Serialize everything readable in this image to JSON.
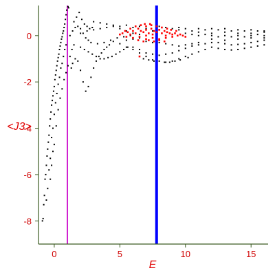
{
  "chart_data": {
    "type": "scatter",
    "title": "",
    "xlabel": "E",
    "ylabel": "<J3>",
    "xlim": [
      -1.2,
      16.3
    ],
    "ylim": [
      -9.0,
      1.3
    ],
    "x_ticks": [
      0,
      5,
      10,
      15
    ],
    "y_ticks": [
      0,
      -2,
      -4,
      -6,
      -8
    ],
    "x_tick_labels": [
      "0",
      "5",
      "10",
      "15"
    ],
    "y_tick_labels": [
      "0",
      "-2",
      "-4",
      "-6",
      "-8"
    ],
    "grid": false,
    "legend": "none",
    "vertical_lines": [
      {
        "x": 1.0,
        "color": "#d020d0"
      },
      {
        "x": 7.8,
        "color": "#0000ff"
      }
    ],
    "series": [
      {
        "color": "#000000",
        "points": [
          [
            -0.9,
            -8.0
          ],
          [
            -0.85,
            -7.9
          ],
          [
            -0.8,
            -7.3
          ],
          [
            -0.75,
            -6.9
          ],
          [
            -0.7,
            -6.2
          ],
          [
            -0.65,
            -6.0
          ],
          [
            -0.6,
            -5.6
          ],
          [
            -0.55,
            -5.2
          ],
          [
            -0.5,
            -4.9
          ],
          [
            -0.45,
            -4.6
          ],
          [
            -0.4,
            -4.3
          ],
          [
            -0.35,
            -3.9
          ],
          [
            -0.3,
            -3.6
          ],
          [
            -0.25,
            -3.3
          ],
          [
            -0.2,
            -3.0
          ],
          [
            -0.15,
            -2.8
          ],
          [
            -0.1,
            -2.6
          ],
          [
            -0.05,
            -2.4
          ],
          [
            0.0,
            -2.2
          ],
          [
            0.05,
            -1.9
          ],
          [
            0.1,
            -1.7
          ],
          [
            0.15,
            -1.5
          ],
          [
            0.2,
            -1.3
          ],
          [
            0.25,
            -1.1
          ],
          [
            0.3,
            -0.95
          ],
          [
            0.35,
            -0.8
          ],
          [
            0.4,
            -0.6
          ],
          [
            0.45,
            -0.45
          ],
          [
            0.5,
            -0.3
          ],
          [
            0.55,
            -0.15
          ],
          [
            0.6,
            -0.05
          ],
          [
            0.65,
            0.1
          ],
          [
            0.7,
            0.2
          ],
          [
            0.75,
            0.35
          ],
          [
            0.8,
            0.5
          ],
          [
            0.85,
            0.7
          ],
          [
            0.9,
            0.9
          ],
          [
            0.95,
            1.1
          ],
          [
            1.05,
            1.25
          ],
          [
            1.1,
            1.2
          ],
          [
            -0.6,
            -7.1
          ],
          [
            -0.5,
            -6.6
          ],
          [
            -0.4,
            -5.8
          ],
          [
            -0.3,
            -5.3
          ],
          [
            -0.2,
            -4.4
          ],
          [
            -0.1,
            -4.0
          ],
          [
            0.0,
            -3.4
          ],
          [
            0.1,
            -2.9
          ],
          [
            0.2,
            -2.5
          ],
          [
            0.3,
            -2.1
          ],
          [
            0.4,
            -1.8
          ],
          [
            0.5,
            -1.4
          ],
          [
            0.6,
            -1.2
          ],
          [
            0.7,
            -0.9
          ],
          [
            0.8,
            -0.6
          ],
          [
            0.9,
            -0.4
          ],
          [
            -0.3,
            -6.2
          ],
          [
            -0.2,
            -5.6
          ],
          [
            -0.1,
            -5.0
          ],
          [
            0.0,
            -4.7
          ],
          [
            0.15,
            -3.9
          ],
          [
            0.3,
            -3.2
          ],
          [
            0.45,
            -2.7
          ],
          [
            0.6,
            -2.3
          ],
          [
            0.75,
            -1.9
          ],
          [
            0.9,
            -1.6
          ],
          [
            1.05,
            -1.3
          ],
          [
            1.2,
            -0.9
          ],
          [
            1.35,
            -0.6
          ],
          [
            1.5,
            -0.4
          ],
          [
            1.3,
            -1.4
          ],
          [
            1.4,
            -1.2
          ],
          [
            1.6,
            -1.0
          ],
          [
            1.8,
            -1.1
          ],
          [
            2.0,
            -1.5
          ],
          [
            2.2,
            -2.0
          ],
          [
            2.4,
            -2.4
          ],
          [
            2.6,
            -2.2
          ],
          [
            2.8,
            -1.8
          ],
          [
            3.0,
            -1.4
          ],
          [
            3.2,
            -1.1
          ],
          [
            3.4,
            -0.9
          ],
          [
            3.6,
            -0.75
          ],
          [
            3.8,
            -0.6
          ],
          [
            4.0,
            -0.5
          ],
          [
            4.2,
            -0.4
          ],
          [
            1.5,
            0.6
          ],
          [
            1.7,
            0.8
          ],
          [
            1.9,
            1.0
          ],
          [
            2.1,
            0.7
          ],
          [
            2.3,
            0.5
          ],
          [
            2.5,
            0.4
          ],
          [
            2.7,
            0.3
          ],
          [
            2.9,
            0.35
          ],
          [
            1.2,
            0.0
          ],
          [
            1.4,
            0.2
          ],
          [
            1.6,
            0.35
          ],
          [
            1.8,
            0.4
          ],
          [
            2.0,
            0.3
          ],
          [
            2.2,
            0.1
          ],
          [
            2.4,
            -0.1
          ],
          [
            2.6,
            -0.2
          ],
          [
            2.0,
            -0.5
          ],
          [
            2.3,
            -0.6
          ],
          [
            2.6,
            -0.7
          ],
          [
            2.9,
            -0.8
          ],
          [
            3.2,
            -0.9
          ],
          [
            3.5,
            -1.0
          ],
          [
            3.8,
            -1.0
          ],
          [
            4.1,
            -0.95
          ],
          [
            4.4,
            -0.9
          ],
          [
            4.7,
            -0.8
          ],
          [
            5.0,
            -0.7
          ],
          [
            5.3,
            -0.6
          ],
          [
            5.6,
            -0.5
          ],
          [
            2.0,
            0.1
          ],
          [
            2.5,
            0.2
          ],
          [
            3.0,
            0.25
          ],
          [
            3.5,
            0.3
          ],
          [
            4.0,
            0.35
          ],
          [
            4.5,
            0.4
          ],
          [
            5.0,
            0.4
          ],
          [
            5.5,
            0.45
          ],
          [
            3.0,
            0.6
          ],
          [
            3.5,
            0.55
          ],
          [
            4.0,
            0.5
          ],
          [
            4.5,
            0.45
          ],
          [
            5.0,
            0.3
          ],
          [
            5.5,
            0.2
          ],
          [
            6.0,
            0.1
          ],
          [
            6.5,
            0.05
          ],
          [
            2.8,
            -0.3
          ],
          [
            3.3,
            -0.35
          ],
          [
            3.8,
            -0.3
          ],
          [
            4.3,
            -0.2
          ],
          [
            4.8,
            -0.1
          ],
          [
            5.3,
            -0.05
          ],
          [
            5.8,
            0.0
          ],
          [
            4.5,
            -0.25
          ],
          [
            5.0,
            -0.35
          ],
          [
            5.5,
            -0.5
          ],
          [
            6.0,
            -0.6
          ],
          [
            6.5,
            -0.75
          ],
          [
            7.0,
            -0.9
          ],
          [
            7.5,
            -1.05
          ],
          [
            8.0,
            -1.1
          ],
          [
            8.5,
            -1.15
          ],
          [
            9.0,
            -1.1
          ],
          [
            9.5,
            -1.0
          ],
          [
            10.0,
            -0.9
          ],
          [
            10.5,
            -0.8
          ],
          [
            11.0,
            -0.7
          ],
          [
            11.5,
            -0.6
          ],
          [
            6.0,
            -0.5
          ],
          [
            6.5,
            -0.6
          ],
          [
            7.0,
            -0.75
          ],
          [
            7.5,
            -0.8
          ],
          [
            8.0,
            -0.85
          ],
          [
            8.5,
            -0.8
          ],
          [
            9.0,
            -0.75
          ],
          [
            9.5,
            -0.65
          ],
          [
            10.0,
            -0.55
          ],
          [
            10.5,
            -0.45
          ],
          [
            11.0,
            -0.4
          ],
          [
            11.5,
            -0.35
          ],
          [
            12.0,
            -0.3
          ],
          [
            6.8,
            -1.0
          ],
          [
            7.2,
            -1.05
          ],
          [
            7.6,
            -1.1
          ],
          [
            8.4,
            -1.15
          ],
          [
            8.8,
            -1.15
          ],
          [
            9.2,
            -1.1
          ],
          [
            9.6,
            -1.05
          ],
          [
            10.2,
            -0.95
          ],
          [
            12.0,
            -0.5
          ],
          [
            12.5,
            -0.55
          ],
          [
            13.0,
            -0.6
          ],
          [
            13.5,
            -0.62
          ],
          [
            14.0,
            -0.6
          ],
          [
            14.5,
            -0.55
          ],
          [
            15.0,
            -0.5
          ],
          [
            15.5,
            -0.45
          ],
          [
            16.0,
            -0.4
          ],
          [
            12.5,
            -0.3
          ],
          [
            13.0,
            -0.35
          ],
          [
            13.5,
            -0.4
          ],
          [
            14.0,
            -0.38
          ],
          [
            14.5,
            -0.35
          ],
          [
            15.0,
            -0.3
          ],
          [
            15.5,
            -0.25
          ],
          [
            16.0,
            -0.2
          ],
          [
            11.0,
            0.3
          ],
          [
            11.5,
            0.25
          ],
          [
            12.0,
            0.3
          ],
          [
            12.5,
            0.25
          ],
          [
            13.0,
            0.3
          ],
          [
            13.5,
            0.2
          ],
          [
            14.0,
            0.25
          ],
          [
            14.5,
            0.2
          ],
          [
            15.0,
            0.25
          ],
          [
            15.5,
            0.2
          ],
          [
            16.0,
            0.2
          ],
          [
            10.0,
            0.1
          ],
          [
            10.5,
            0.05
          ],
          [
            11.0,
            0.0
          ],
          [
            11.5,
            0.05
          ],
          [
            12.0,
            0.0
          ],
          [
            12.5,
            -0.05
          ],
          [
            13.0,
            0.0
          ],
          [
            13.5,
            -0.05
          ],
          [
            14.0,
            0.0
          ],
          [
            14.5,
            -0.05
          ],
          [
            15.0,
            0.0
          ],
          [
            15.5,
            0.05
          ],
          [
            16.0,
            0.0
          ],
          [
            9.5,
            0.35
          ],
          [
            10.0,
            0.3
          ],
          [
            10.5,
            0.2
          ],
          [
            11.0,
            0.15
          ],
          [
            12.0,
            0.1
          ],
          [
            13.0,
            0.15
          ],
          [
            14.0,
            0.1
          ],
          [
            15.0,
            0.1
          ],
          [
            16.0,
            0.15
          ],
          [
            12.0,
            -0.15
          ],
          [
            13.0,
            -0.2
          ],
          [
            14.0,
            -0.15
          ],
          [
            15.0,
            -0.1
          ],
          [
            16.0,
            -0.1
          ],
          [
            6.0,
            0.35
          ],
          [
            6.5,
            0.4
          ],
          [
            7.0,
            0.3
          ],
          [
            7.5,
            0.2
          ],
          [
            8.0,
            0.4
          ],
          [
            8.5,
            0.35
          ],
          [
            9.0,
            0.3
          ],
          [
            9.5,
            0.25
          ],
          [
            5.5,
            -0.2
          ],
          [
            6.0,
            -0.15
          ],
          [
            6.5,
            -0.1
          ],
          [
            7.0,
            -0.25
          ],
          [
            7.5,
            -0.3
          ],
          [
            8.0,
            -0.3
          ],
          [
            8.5,
            -0.35
          ],
          [
            9.0,
            -0.4
          ],
          [
            9.5,
            -0.45
          ],
          [
            10.0,
            -0.4
          ],
          [
            10.5,
            -0.35
          ],
          [
            11.0,
            -0.3
          ]
        ]
      },
      {
        "color": "#ff0000",
        "points": [
          [
            5.0,
            0.05
          ],
          [
            5.2,
            0.1
          ],
          [
            5.4,
            0.2
          ],
          [
            5.6,
            0.15
          ],
          [
            5.8,
            0.05
          ],
          [
            6.0,
            0.2
          ],
          [
            6.2,
            0.1
          ],
          [
            6.4,
            0.3
          ],
          [
            6.6,
            0.2
          ],
          [
            6.8,
            0.15
          ],
          [
            7.0,
            0.25
          ],
          [
            7.2,
            0.1
          ],
          [
            7.4,
            0.3
          ],
          [
            7.6,
            0.2
          ],
          [
            7.8,
            0.15
          ],
          [
            8.0,
            0.25
          ],
          [
            8.2,
            0.1
          ],
          [
            8.4,
            0.2
          ],
          [
            8.6,
            0.15
          ],
          [
            8.8,
            0.1
          ],
          [
            9.0,
            0.05
          ],
          [
            9.2,
            0.1
          ],
          [
            9.4,
            0.0
          ],
          [
            9.6,
            0.05
          ],
          [
            5.5,
            -0.05
          ],
          [
            6.0,
            -0.1
          ],
          [
            6.5,
            -0.05
          ],
          [
            7.0,
            -0.15
          ],
          [
            7.5,
            -0.1
          ],
          [
            8.0,
            -0.15
          ],
          [
            8.5,
            -0.1
          ],
          [
            9.0,
            -0.05
          ],
          [
            6.2,
            0.4
          ],
          [
            6.6,
            0.45
          ],
          [
            7.0,
            0.4
          ],
          [
            7.4,
            0.45
          ],
          [
            7.8,
            0.4
          ],
          [
            8.2,
            0.35
          ],
          [
            6.4,
            -0.2
          ],
          [
            6.8,
            -0.25
          ],
          [
            7.2,
            -0.2
          ],
          [
            7.6,
            -0.25
          ],
          [
            8.0,
            -0.2
          ],
          [
            8.4,
            -0.25
          ],
          [
            6.5,
            -0.9
          ],
          [
            7.0,
            0.0
          ],
          [
            7.5,
            0.05
          ],
          [
            8.5,
            0.0
          ],
          [
            9.8,
            0.0
          ],
          [
            10.0,
            -0.05
          ],
          [
            5.8,
            0.3
          ],
          [
            6.9,
            0.5
          ],
          [
            7.3,
            0.5
          ],
          [
            8.6,
            0.3
          ],
          [
            8.9,
            0.25
          ],
          [
            9.3,
            0.2
          ]
        ]
      }
    ]
  }
}
